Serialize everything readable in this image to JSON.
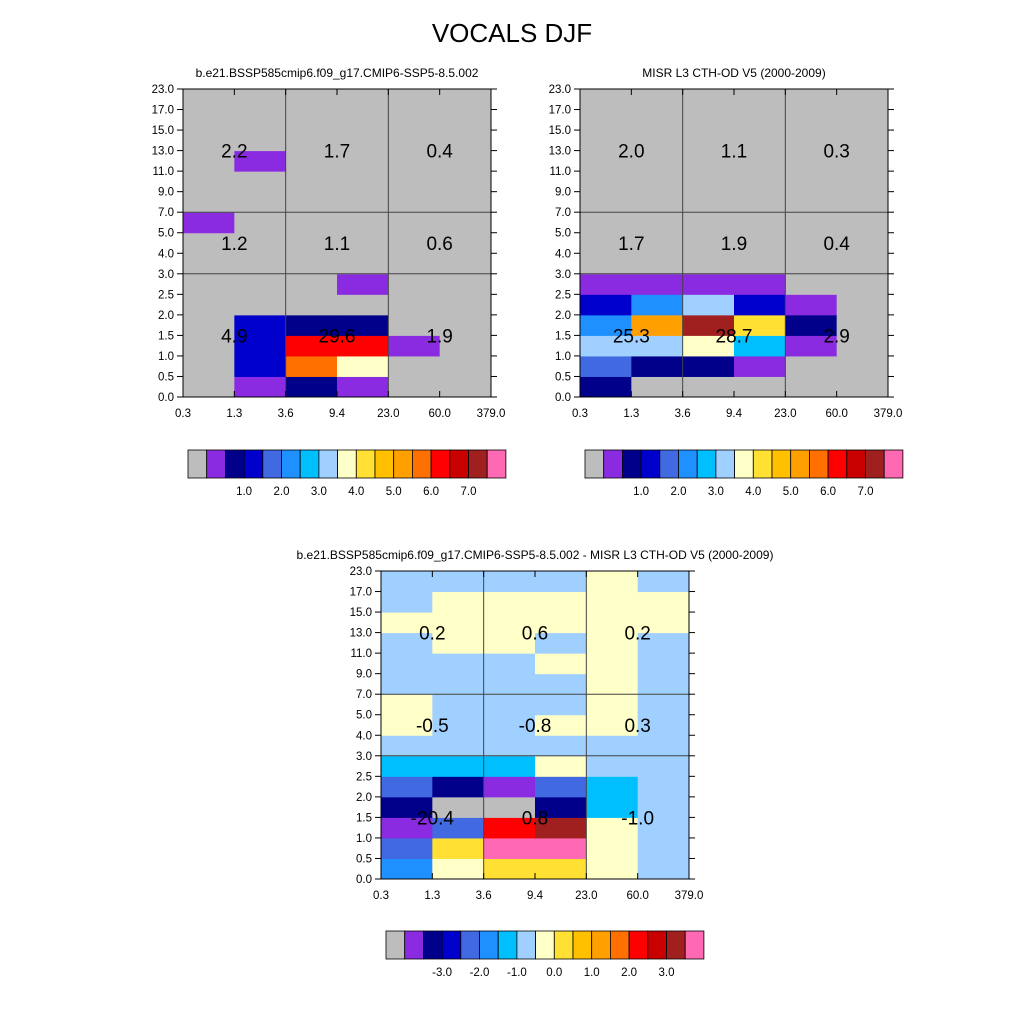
{
  "title": "VOCALS DJF",
  "x_ticks": [
    "0.3",
    "1.3",
    "3.6",
    "9.4",
    "23.0",
    "60.0",
    "379.0"
  ],
  "y_ticks": [
    "0.0",
    "0.5",
    "1.0",
    "1.5",
    "2.0",
    "2.5",
    "3.0",
    "4.0",
    "5.0",
    "7.0",
    "9.0",
    "11.0",
    "13.0",
    "15.0",
    "17.0",
    "23.0"
  ],
  "colorbar_top": {
    "colors": [
      "#bdbdbd",
      "#8a2be2",
      "#00008b",
      "#0000cd",
      "#4169e1",
      "#1e90ff",
      "#00bfff",
      "#a0d0ff",
      "#ffffc8",
      "#ffe033",
      "#ffc000",
      "#ffa000",
      "#ff7000",
      "#ff0000",
      "#c80000",
      "#a02020",
      "#ff69b4"
    ],
    "labels": [
      "1.0",
      "2.0",
      "3.0",
      "4.0",
      "5.0",
      "6.0",
      "7.0"
    ]
  },
  "colorbar_diff": {
    "colors": [
      "#bdbdbd",
      "#8a2be2",
      "#00008b",
      "#0000cd",
      "#4169e1",
      "#1e90ff",
      "#00bfff",
      "#a0d0ff",
      "#ffffc8",
      "#ffe033",
      "#ffc000",
      "#ffa000",
      "#ff7000",
      "#ff0000",
      "#c80000",
      "#a02020",
      "#ff69b4"
    ],
    "labels": [
      "-3.0",
      "-2.0",
      "-1.0",
      "0.0",
      "1.0",
      "2.0",
      "3.0"
    ]
  },
  "chart_data": [
    {
      "type": "heatmap",
      "title": "b.e21.BSSP585cmip6.f09_g17.CMIP6-SSP5-8.5.002",
      "x_edges": [
        "0.3",
        "1.3",
        "3.6",
        "9.4",
        "23.0",
        "60.0",
        "379.0"
      ],
      "y_edges": [
        "0.0",
        "0.5",
        "1.0",
        "1.5",
        "2.0",
        "2.5",
        "3.0",
        "4.0",
        "5.0",
        "7.0",
        "9.0",
        "11.0",
        "13.0",
        "15.0",
        "17.0",
        "23.0"
      ],
      "cell_color_index": [
        [
          0,
          1,
          2,
          1,
          0,
          0
        ],
        [
          0,
          3,
          12,
          8,
          0,
          0
        ],
        [
          0,
          3,
          13,
          13,
          1,
          0
        ],
        [
          0,
          3,
          2,
          2,
          0,
          0
        ],
        [
          0,
          0,
          0,
          0,
          0,
          0
        ],
        [
          0,
          0,
          0,
          1,
          0,
          0
        ],
        [
          0,
          0,
          0,
          0,
          0,
          0
        ],
        [
          0,
          0,
          0,
          0,
          0,
          0
        ],
        [
          1,
          0,
          0,
          0,
          0,
          0
        ],
        [
          0,
          0,
          0,
          0,
          0,
          0
        ],
        [
          0,
          0,
          0,
          0,
          0,
          0
        ],
        [
          0,
          1,
          0,
          0,
          0,
          0
        ],
        [
          0,
          0,
          0,
          0,
          0,
          0
        ],
        [
          0,
          0,
          0,
          0,
          0,
          0
        ],
        [
          0,
          0,
          0,
          0,
          0,
          0
        ]
      ],
      "block_x_edges": [
        "0.3",
        "3.6",
        "23.0",
        "379.0"
      ],
      "block_y_edges": [
        "0.0",
        "3.0",
        "7.0",
        "23.0"
      ],
      "block_values": [
        [
          "4.9",
          "29.6",
          "1.9"
        ],
        [
          "1.2",
          "1.1",
          "0.6"
        ],
        [
          "2.2",
          "1.7",
          "0.4"
        ]
      ]
    },
    {
      "type": "heatmap",
      "title": "MISR L3 CTH-OD V5 (2000-2009)",
      "x_edges": [
        "0.3",
        "1.3",
        "3.6",
        "9.4",
        "23.0",
        "60.0",
        "379.0"
      ],
      "y_edges": [
        "0.0",
        "0.5",
        "1.0",
        "1.5",
        "2.0",
        "2.5",
        "3.0",
        "4.0",
        "5.0",
        "7.0",
        "9.0",
        "11.0",
        "13.0",
        "15.0",
        "17.0",
        "23.0"
      ],
      "cell_color_index": [
        [
          2,
          0,
          0,
          0,
          0,
          0
        ],
        [
          4,
          2,
          2,
          1,
          0,
          0
        ],
        [
          7,
          7,
          8,
          6,
          1,
          0
        ],
        [
          5,
          11,
          15,
          9,
          2,
          0
        ],
        [
          3,
          5,
          7,
          3,
          1,
          0
        ],
        [
          1,
          1,
          1,
          1,
          0,
          0
        ],
        [
          0,
          0,
          0,
          0,
          0,
          0
        ],
        [
          0,
          0,
          0,
          0,
          0,
          0
        ],
        [
          0,
          0,
          0,
          0,
          0,
          0
        ],
        [
          0,
          0,
          0,
          0,
          0,
          0
        ],
        [
          0,
          0,
          0,
          0,
          0,
          0
        ],
        [
          0,
          0,
          0,
          0,
          0,
          0
        ],
        [
          0,
          0,
          0,
          0,
          0,
          0
        ],
        [
          0,
          0,
          0,
          0,
          0,
          0
        ],
        [
          0,
          0,
          0,
          0,
          0,
          0
        ]
      ],
      "block_x_edges": [
        "0.3",
        "3.6",
        "23.0",
        "379.0"
      ],
      "block_y_edges": [
        "0.0",
        "3.0",
        "7.0",
        "23.0"
      ],
      "block_values": [
        [
          "25.3",
          "28.7",
          "2.9"
        ],
        [
          "1.7",
          "1.9",
          "0.4"
        ],
        [
          "2.0",
          "1.1",
          "0.3"
        ]
      ]
    },
    {
      "type": "heatmap",
      "title": "b.e21.BSSP585cmip6.f09_g17.CMIP6-SSP5-8.5.002 - MISR L3 CTH-OD V5 (2000-2009)",
      "x_edges": [
        "0.3",
        "1.3",
        "3.6",
        "9.4",
        "23.0",
        "60.0",
        "379.0"
      ],
      "y_edges": [
        "0.0",
        "0.5",
        "1.0",
        "1.5",
        "2.0",
        "2.5",
        "3.0",
        "4.0",
        "5.0",
        "7.0",
        "9.0",
        "11.0",
        "13.0",
        "15.0",
        "17.0",
        "23.0"
      ],
      "cell_color_index": [
        [
          5,
          8,
          9,
          9,
          8,
          7
        ],
        [
          4,
          9,
          16,
          16,
          8,
          7
        ],
        [
          1,
          4,
          13,
          15,
          8,
          7
        ],
        [
          2,
          0,
          0,
          2,
          6,
          7
        ],
        [
          4,
          2,
          1,
          4,
          6,
          7
        ],
        [
          6,
          6,
          6,
          8,
          7,
          7
        ],
        [
          7,
          7,
          7,
          7,
          7,
          7
        ],
        [
          8,
          7,
          7,
          8,
          8,
          7
        ],
        [
          8,
          7,
          7,
          7,
          8,
          7
        ],
        [
          7,
          7,
          7,
          7,
          8,
          7
        ],
        [
          7,
          7,
          7,
          8,
          8,
          7
        ],
        [
          7,
          8,
          8,
          7,
          8,
          7
        ],
        [
          8,
          8,
          8,
          8,
          8,
          8
        ],
        [
          7,
          8,
          8,
          8,
          8,
          8
        ],
        [
          7,
          7,
          7,
          7,
          8,
          7
        ]
      ],
      "block_x_edges": [
        "0.3",
        "3.6",
        "23.0",
        "379.0"
      ],
      "block_y_edges": [
        "0.0",
        "3.0",
        "7.0",
        "23.0"
      ],
      "block_values": [
        [
          "-20.4",
          "0.8",
          "-1.0"
        ],
        [
          "-0.5",
          "-0.8",
          "0.3"
        ],
        [
          "0.2",
          "0.6",
          "0.2"
        ]
      ]
    }
  ]
}
